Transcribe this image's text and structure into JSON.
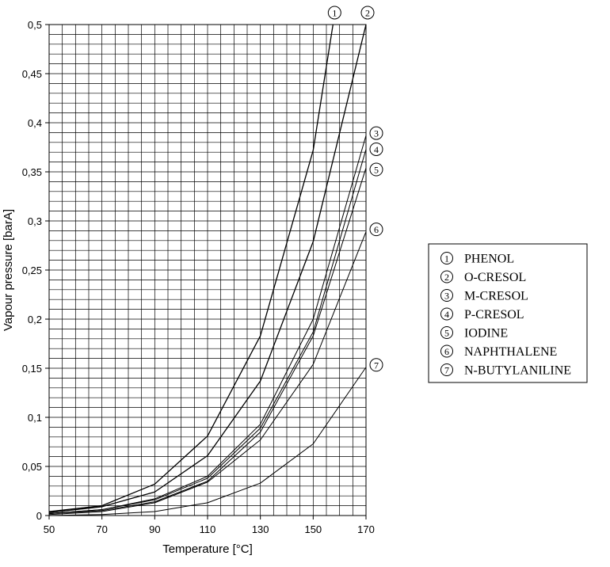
{
  "chart_data": {
    "type": "line",
    "title": "",
    "xlabel": "Temperature [°C]",
    "ylabel": "Vapour pressure [barA]",
    "xlim": [
      50,
      170
    ],
    "ylim": [
      0,
      0.5
    ],
    "grid": true,
    "x_minor_step": 5,
    "y_minor_step": 0.01,
    "x_ticks": [
      50,
      70,
      90,
      110,
      130,
      150,
      170
    ],
    "x_tick_labels": [
      "50",
      "70",
      "90",
      "110",
      "130",
      "150",
      "170"
    ],
    "y_ticks": [
      0,
      0.05,
      0.1,
      0.15,
      0.2,
      0.25,
      0.3,
      0.35,
      0.4,
      0.45,
      0.5
    ],
    "y_tick_labels": [
      "0",
      "0,05",
      "0,1",
      "0,15",
      "0,2",
      "0,25",
      "0,3",
      "0,35",
      "0,4",
      "0,45",
      "0,5"
    ],
    "legend_position": "right",
    "series": [
      {
        "name": "PHENOL",
        "marker": "①",
        "x": [
          50,
          70,
          90,
          110,
          130,
          150,
          157.5
        ],
        "y": [
          0.004,
          0.01,
          0.032,
          0.081,
          0.183,
          0.372,
          0.5
        ]
      },
      {
        "name": "O-CRESOL",
        "marker": "②",
        "x": [
          50,
          70,
          90,
          110,
          130,
          150,
          170
        ],
        "y": [
          0.003,
          0.009,
          0.024,
          0.061,
          0.137,
          0.279,
          0.5
        ]
      },
      {
        "name": "M-CRESOL",
        "marker": "③",
        "x": [
          50,
          70,
          90,
          110,
          130,
          150,
          170
        ],
        "y": [
          0.002,
          0.006,
          0.017,
          0.04,
          0.093,
          0.2,
          0.387
        ]
      },
      {
        "name": "P-CRESOL",
        "marker": "④",
        "x": [
          50,
          70,
          90,
          110,
          130,
          150,
          170
        ],
        "y": [
          0.002,
          0.006,
          0.016,
          0.038,
          0.089,
          0.187,
          0.373
        ]
      },
      {
        "name": "IODINE",
        "marker": "⑤",
        "x": [
          50,
          70,
          90,
          110,
          130,
          150,
          170
        ],
        "y": [
          0.002,
          0.005,
          0.014,
          0.035,
          0.085,
          0.183,
          0.354
        ]
      },
      {
        "name": "NAPHTHALENE",
        "marker": "⑥",
        "x": [
          50,
          70,
          90,
          110,
          130,
          150,
          170
        ],
        "y": [
          0.001,
          0.004,
          0.013,
          0.034,
          0.077,
          0.154,
          0.289
        ]
      },
      {
        "name": "N-BUTYLANILINE",
        "marker": "⑦",
        "x": [
          50,
          70,
          90,
          110,
          130,
          150,
          170
        ],
        "y": [
          0.0,
          0.001,
          0.004,
          0.013,
          0.033,
          0.073,
          0.151
        ]
      }
    ]
  }
}
